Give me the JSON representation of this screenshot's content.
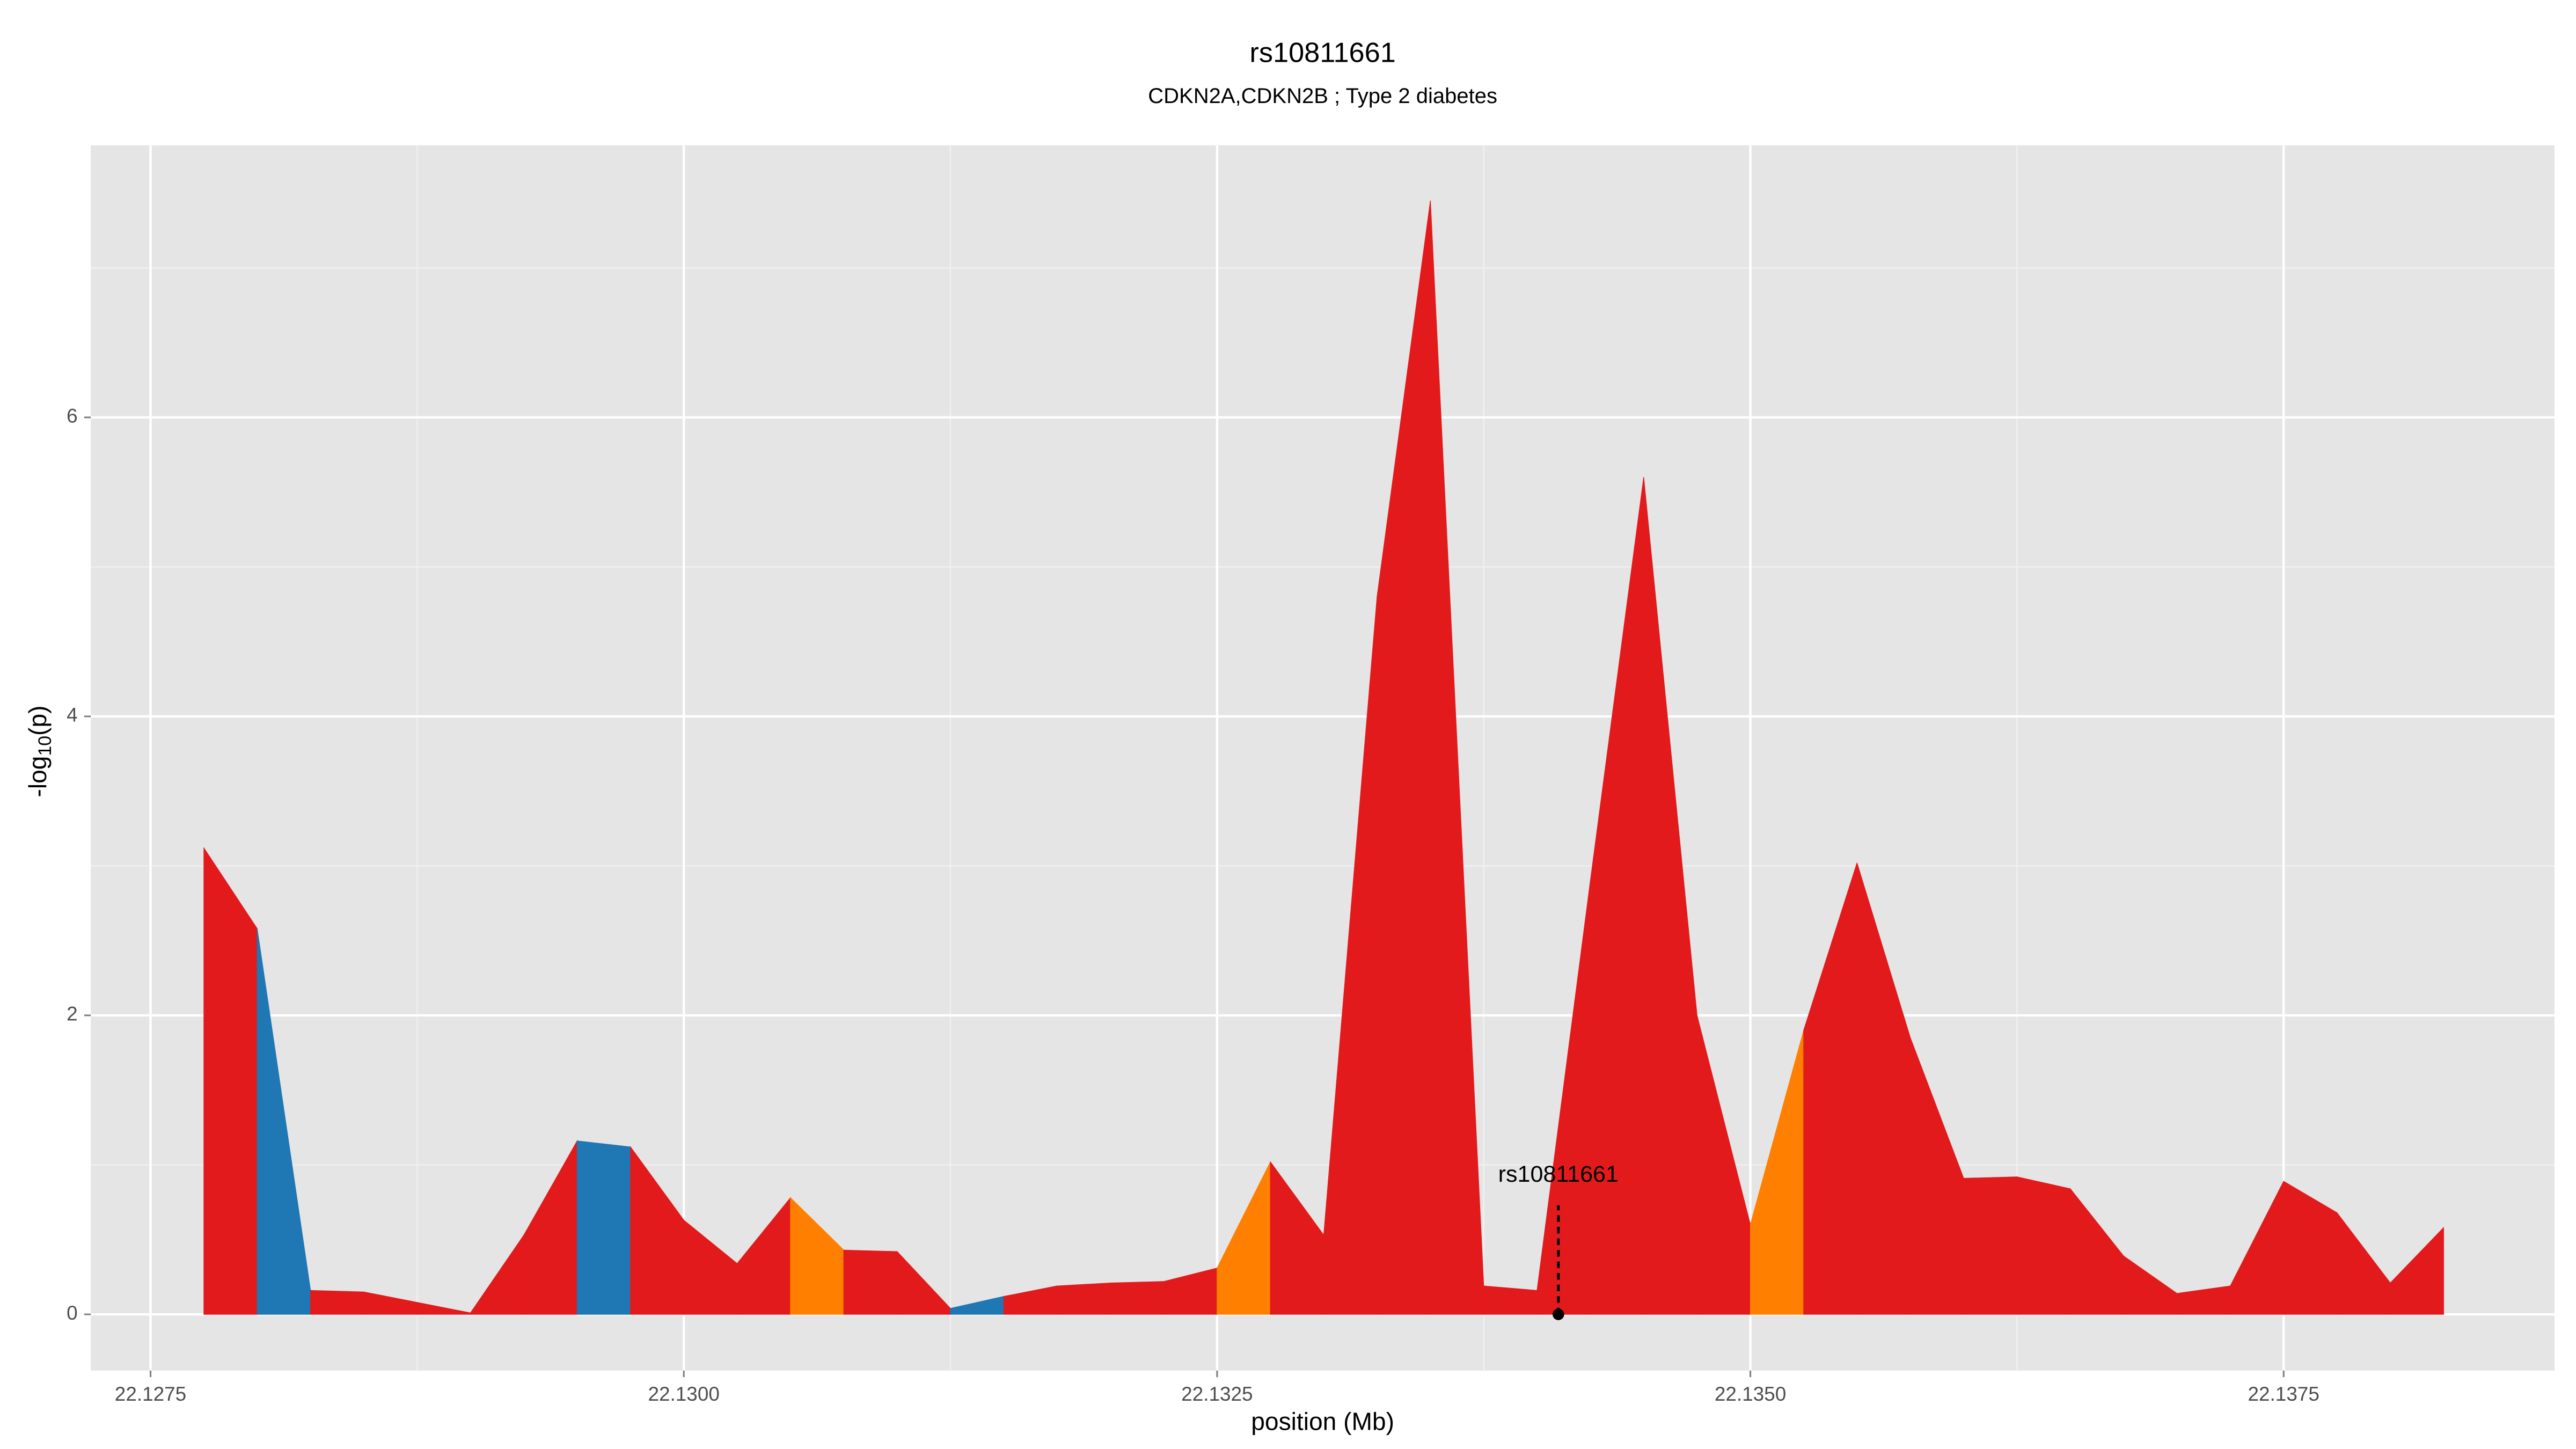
{
  "chart_data": {
    "type": "area",
    "title": "rs10811661",
    "subtitle": "CDKN2A,CDKN2B ; Type 2 diabetes",
    "xlabel": "position (Mb)",
    "ylabel": "-log10(p)",
    "x": [
      22.12775,
      22.128,
      22.12825,
      22.1285,
      22.12875,
      22.129,
      22.12925,
      22.1295,
      22.12975,
      22.13,
      22.13025,
      22.1305,
      22.13075,
      22.131,
      22.13125,
      22.1315,
      22.13175,
      22.132,
      22.13225,
      22.1325,
      22.13275,
      22.133,
      22.13325,
      22.1335,
      22.13375,
      22.134,
      22.13425,
      22.1345,
      22.13475,
      22.135,
      22.13525,
      22.1355,
      22.13575,
      22.136,
      22.13625,
      22.1365,
      22.13675,
      22.137,
      22.13725,
      22.1375,
      22.13775,
      22.138,
      22.13825
    ],
    "series": [
      {
        "values": [
          3.12,
          2.58,
          0.16,
          0.15,
          0.08,
          0.01,
          0.53,
          1.16,
          1.12,
          0.63,
          0.34,
          0.78,
          0.43,
          0.42,
          0.04,
          0.12,
          0.19,
          0.21,
          0.22,
          0.31,
          1.02,
          0.53,
          4.8,
          7.45,
          0.19,
          0.16,
          2.9,
          5.6,
          2.0,
          0.6,
          1.9,
          3.02,
          1.85,
          0.91,
          0.92,
          0.84,
          0.39,
          0.14,
          0.19,
          0.89,
          0.68,
          0.21,
          0.58
        ],
        "colors": [
          "#e31a1c",
          "#1f78b4",
          "#e31a1c",
          "#e31a1c",
          "#e31a1c",
          "#e31a1c",
          "#e31a1c",
          "#1f78b4",
          "#e31a1c",
          "#e31a1c",
          "#e31a1c",
          "#ff7f00",
          "#e31a1c",
          "#e31a1c",
          "#1f78b4",
          "#e31a1c",
          "#e31a1c",
          "#e31a1c",
          "#e31a1c",
          "#ff7f00",
          "#e31a1c",
          "#e31a1c",
          "#e31a1c",
          "#e31a1c",
          "#e31a1c",
          "#e31a1c",
          "#e31a1c",
          "#e31a1c",
          "#e31a1c",
          "#ff7f00",
          "#e31a1c",
          "#e31a1c",
          "#e31a1c",
          "#e31a1c",
          "#e31a1c",
          "#e31a1c",
          "#e31a1c",
          "#e31a1c",
          "#e31a1c",
          "#e31a1c",
          "#e31a1c",
          "#e31a1c",
          "#e31a1c"
        ]
      }
    ],
    "xlim": [
      22.12722,
      22.13877
    ],
    "ylim": [
      -0.376,
      7.82
    ],
    "xticks": [
      22.1275,
      {
        "value": 22.13,
        "label": "22.1300"
      },
      22.1325,
      {
        "value": 22.135,
        "label": "22.1350"
      },
      22.1375
    ],
    "yticks": [
      0,
      2,
      4,
      6
    ],
    "x_minor_grid": [
      22.12875,
      22.13125,
      22.13375,
      22.13625
    ],
    "y_minor_grid": [
      1,
      3,
      5,
      7
    ],
    "annotation": {
      "text": "rs10811661",
      "x": 22.1341,
      "y": 0
    },
    "grid": true
  }
}
